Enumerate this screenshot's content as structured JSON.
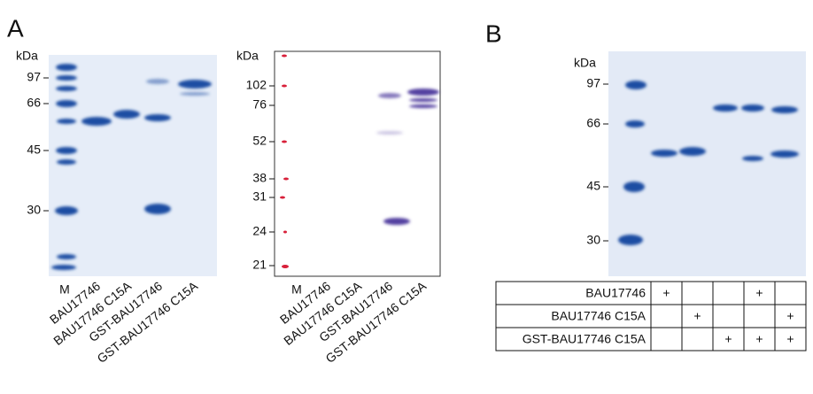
{
  "panels": [
    {
      "label": "A",
      "gels": [
        {
          "unit": "kDa",
          "markers": [
            "97",
            "66",
            "45",
            "30"
          ],
          "lanes": [
            "M",
            "BAU17746",
            "BAU17746 C15A",
            "GST-BAU17746",
            "GST-BAU17746 C15A"
          ]
        },
        {
          "unit": "kDa",
          "markers": [
            "102",
            "76",
            "52",
            "38",
            "31",
            "24",
            "21"
          ],
          "lanes": [
            "M",
            "BAU17746",
            "BAU17746 C15A",
            "GST-BAU17746",
            "GST-BAU17746 C15A"
          ]
        }
      ]
    },
    {
      "label": "B",
      "gels": [
        {
          "unit": "kDa",
          "markers": [
            "97",
            "66",
            "45",
            "30"
          ]
        }
      ],
      "table": {
        "rows": [
          {
            "label": "BAU17746",
            "cells": [
              "+",
              null,
              null,
              "+",
              null
            ]
          },
          {
            "label": "BAU17746 C15A",
            "cells": [
              null,
              "+",
              null,
              null,
              "+"
            ]
          },
          {
            "label": "GST-BAU17746 C15A",
            "cells": [
              null,
              null,
              "+",
              "+",
              "+"
            ]
          }
        ]
      }
    }
  ]
}
